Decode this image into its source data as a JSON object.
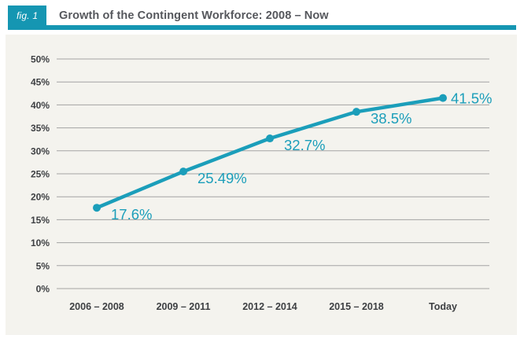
{
  "figure": {
    "badge_label": "fig. 1",
    "title": "Growth of the Contingent Workforce: 2008 – Now"
  },
  "colors": {
    "accent_teal": "#1596b2",
    "line_teal": "#1b9eba",
    "panel_background": "#f4f3ee",
    "gridline": "#a3a3a3",
    "axis_text": "#3e4043",
    "title_text": "#55575c",
    "badge_text": "#ffffff"
  },
  "chart_data": {
    "type": "line",
    "title": "Growth of the Contingent Workforce: 2008 – Now",
    "categories": [
      "2006 – 2008",
      "2009 – 2011",
      "2012 – 2014",
      "2015 – 2018",
      "Today"
    ],
    "values": [
      17.6,
      25.49,
      32.7,
      38.5,
      41.5
    ],
    "point_labels": [
      "17.6%",
      "25.49%",
      "32.7%",
      "38.5%",
      "41.5%"
    ],
    "y_tick_values": [
      0,
      5,
      10,
      15,
      20,
      25,
      30,
      35,
      40,
      45,
      50
    ],
    "y_tick_labels": [
      "0%",
      "5%",
      "10%",
      "15%",
      "20%",
      "25%",
      "30%",
      "35%",
      "40%",
      "45%",
      "50%"
    ],
    "ylim": [
      0,
      50
    ],
    "xlabel": "",
    "ylabel": "",
    "grid": "horizontal",
    "legend": "none"
  }
}
